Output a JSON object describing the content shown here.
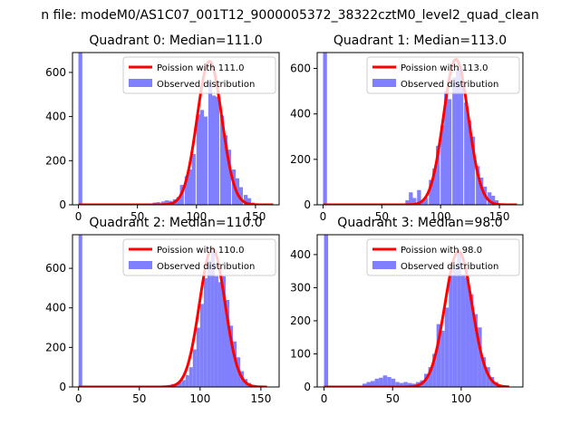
{
  "figure": {
    "suptitle": "n file: modeM0/AS1C07_001T12_9000005372_38322cztM0_level2_quad_clean"
  },
  "chart_data": [
    {
      "type": "bar",
      "title": "Quadrant 0: Median=111.0",
      "xlim": [
        -5,
        170
      ],
      "ylim": [
        0,
        690
      ],
      "xticks": [
        0,
        50,
        100,
        150
      ],
      "yticks": [
        0,
        200,
        400,
        600
      ],
      "bin_width": 3.3,
      "legend": {
        "position": "top-right",
        "line_label": "Poission with 111.0",
        "bar_label": "Observed distribution"
      },
      "poisson_mean": 111.0,
      "poisson_peak": 650,
      "poisson_sd": 10.5,
      "poisson_range": [
        0,
        165
      ],
      "bars": [
        {
          "x": 0,
          "y": 690
        },
        {
          "x": 63,
          "y": 10
        },
        {
          "x": 66,
          "y": 12
        },
        {
          "x": 70,
          "y": 15
        },
        {
          "x": 73,
          "y": 20
        },
        {
          "x": 76,
          "y": 18
        },
        {
          "x": 80,
          "y": 25
        },
        {
          "x": 83,
          "y": 35
        },
        {
          "x": 86,
          "y": 90
        },
        {
          "x": 90,
          "y": 130
        },
        {
          "x": 93,
          "y": 160
        },
        {
          "x": 96,
          "y": 230
        },
        {
          "x": 100,
          "y": 410
        },
        {
          "x": 103,
          "y": 430
        },
        {
          "x": 106,
          "y": 400
        },
        {
          "x": 110,
          "y": 560
        },
        {
          "x": 113,
          "y": 495
        },
        {
          "x": 116,
          "y": 490
        },
        {
          "x": 120,
          "y": 405
        },
        {
          "x": 123,
          "y": 315
        },
        {
          "x": 126,
          "y": 250
        },
        {
          "x": 130,
          "y": 160
        },
        {
          "x": 133,
          "y": 120
        },
        {
          "x": 136,
          "y": 80
        },
        {
          "x": 140,
          "y": 45
        },
        {
          "x": 143,
          "y": 30
        },
        {
          "x": 146,
          "y": 10
        }
      ]
    },
    {
      "type": "bar",
      "title": "Quadrant 1: Median=113.0",
      "xlim": [
        -5,
        170
      ],
      "ylim": [
        0,
        670
      ],
      "xticks": [
        0,
        50,
        100,
        150
      ],
      "yticks": [
        0,
        200,
        400,
        600
      ],
      "bin_width": 3.3,
      "legend": {
        "position": "top-right",
        "line_label": "Poission with 113.0",
        "bar_label": "Observed distribution"
      },
      "poisson_mean": 113.0,
      "poisson_peak": 640,
      "poisson_sd": 10.6,
      "poisson_range": [
        0,
        165
      ],
      "bars": [
        {
          "x": 0,
          "y": 670
        },
        {
          "x": 70,
          "y": 20
        },
        {
          "x": 73,
          "y": 55
        },
        {
          "x": 76,
          "y": 30
        },
        {
          "x": 80,
          "y": 65
        },
        {
          "x": 83,
          "y": 20
        },
        {
          "x": 86,
          "y": 30
        },
        {
          "x": 90,
          "y": 110
        },
        {
          "x": 93,
          "y": 160
        },
        {
          "x": 96,
          "y": 260
        },
        {
          "x": 100,
          "y": 350
        },
        {
          "x": 103,
          "y": 500
        },
        {
          "x": 106,
          "y": 465
        },
        {
          "x": 110,
          "y": 560
        },
        {
          "x": 113,
          "y": 600
        },
        {
          "x": 116,
          "y": 600
        },
        {
          "x": 120,
          "y": 450
        },
        {
          "x": 123,
          "y": 370
        },
        {
          "x": 126,
          "y": 300
        },
        {
          "x": 130,
          "y": 170
        },
        {
          "x": 133,
          "y": 120
        },
        {
          "x": 136,
          "y": 80
        },
        {
          "x": 140,
          "y": 55
        },
        {
          "x": 143,
          "y": 40
        },
        {
          "x": 146,
          "y": 20
        }
      ]
    },
    {
      "type": "bar",
      "title": "Quadrant 2: Median=110.0",
      "xlim": [
        -5,
        165
      ],
      "ylim": [
        0,
        770
      ],
      "xticks": [
        0,
        50,
        100,
        150
      ],
      "yticks": [
        0,
        200,
        400,
        600
      ],
      "bin_width": 3.0,
      "legend": {
        "position": "top-right",
        "line_label": "Poission with 110.0",
        "bar_label": "Observed distribution"
      },
      "poisson_mean": 110.0,
      "poisson_peak": 700,
      "poisson_sd": 10.5,
      "poisson_range": [
        0,
        155
      ],
      "bars": [
        {
          "x": 0,
          "y": 770
        },
        {
          "x": 67,
          "y": 5
        },
        {
          "x": 70,
          "y": 8
        },
        {
          "x": 73,
          "y": 10
        },
        {
          "x": 76,
          "y": 15
        },
        {
          "x": 79,
          "y": 18
        },
        {
          "x": 82,
          "y": 25
        },
        {
          "x": 85,
          "y": 35
        },
        {
          "x": 88,
          "y": 60
        },
        {
          "x": 91,
          "y": 100
        },
        {
          "x": 94,
          "y": 190
        },
        {
          "x": 97,
          "y": 300
        },
        {
          "x": 100,
          "y": 420
        },
        {
          "x": 103,
          "y": 550
        },
        {
          "x": 106,
          "y": 640
        },
        {
          "x": 109,
          "y": 690
        },
        {
          "x": 112,
          "y": 560
        },
        {
          "x": 115,
          "y": 530
        },
        {
          "x": 118,
          "y": 560
        },
        {
          "x": 121,
          "y": 440
        },
        {
          "x": 124,
          "y": 310
        },
        {
          "x": 127,
          "y": 230
        },
        {
          "x": 130,
          "y": 150
        },
        {
          "x": 133,
          "y": 80
        },
        {
          "x": 136,
          "y": 40
        },
        {
          "x": 139,
          "y": 20
        },
        {
          "x": 142,
          "y": 10
        }
      ]
    },
    {
      "type": "bar",
      "title": "Quadrant 3: Median=98.0",
      "xlim": [
        -5,
        145
      ],
      "ylim": [
        0,
        460
      ],
      "xticks": [
        0,
        50,
        100
      ],
      "yticks": [
        0,
        100,
        200,
        300,
        400
      ],
      "bin_width": 3.0,
      "legend": {
        "position": "top-right",
        "line_label": "Poission with 98.0",
        "bar_label": "Observed distribution"
      },
      "poisson_mean": 98.0,
      "poisson_peak": 410,
      "poisson_sd": 9.9,
      "poisson_range": [
        0,
        135
      ],
      "bars": [
        {
          "x": 0,
          "y": 460
        },
        {
          "x": 28,
          "y": 10
        },
        {
          "x": 31,
          "y": 15
        },
        {
          "x": 34,
          "y": 18
        },
        {
          "x": 37,
          "y": 25
        },
        {
          "x": 40,
          "y": 28
        },
        {
          "x": 43,
          "y": 35
        },
        {
          "x": 46,
          "y": 30
        },
        {
          "x": 49,
          "y": 25
        },
        {
          "x": 52,
          "y": 15
        },
        {
          "x": 55,
          "y": 12
        },
        {
          "x": 58,
          "y": 15
        },
        {
          "x": 61,
          "y": 12
        },
        {
          "x": 64,
          "y": 10
        },
        {
          "x": 67,
          "y": 15
        },
        {
          "x": 70,
          "y": 20
        },
        {
          "x": 73,
          "y": 40
        },
        {
          "x": 76,
          "y": 60
        },
        {
          "x": 79,
          "y": 100
        },
        {
          "x": 82,
          "y": 190
        },
        {
          "x": 85,
          "y": 170
        },
        {
          "x": 88,
          "y": 240
        },
        {
          "x": 91,
          "y": 340
        },
        {
          "x": 94,
          "y": 360
        },
        {
          "x": 97,
          "y": 410
        },
        {
          "x": 100,
          "y": 340
        },
        {
          "x": 103,
          "y": 330
        },
        {
          "x": 106,
          "y": 280
        },
        {
          "x": 109,
          "y": 220
        },
        {
          "x": 112,
          "y": 180
        },
        {
          "x": 115,
          "y": 90
        },
        {
          "x": 118,
          "y": 60
        },
        {
          "x": 121,
          "y": 30
        },
        {
          "x": 124,
          "y": 15
        },
        {
          "x": 127,
          "y": 5
        }
      ]
    }
  ]
}
